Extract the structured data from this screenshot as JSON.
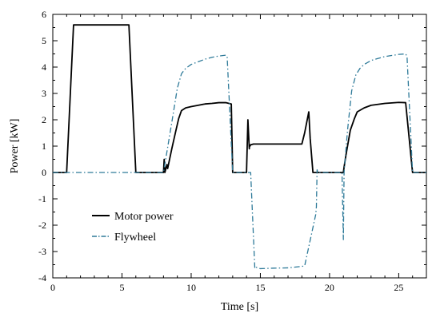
{
  "chart_data": {
    "type": "line",
    "xlabel": "Time [s]",
    "ylabel": "Power [kW]",
    "xlim": [
      0,
      27
    ],
    "ylim": [
      -4,
      6
    ],
    "xticks": [
      0,
      5,
      10,
      15,
      20,
      25
    ],
    "yticks": [
      -4,
      -3,
      -2,
      -1,
      0,
      1,
      2,
      3,
      4,
      5,
      6
    ],
    "grid": false,
    "legend_position": "lower-left",
    "series": [
      {
        "name": "Motor power",
        "color": "#000000",
        "style": "solid",
        "x": [
          0,
          1.0,
          1.5,
          5.5,
          6.0,
          8.0,
          8.05,
          8.1,
          8.25,
          8.3,
          8.6,
          8.9,
          9.1,
          9.3,
          9.6,
          10.0,
          10.5,
          11.0,
          11.5,
          12.0,
          12.5,
          12.9,
          13.0,
          14.0,
          14.1,
          14.2,
          14.22,
          14.25,
          14.3,
          14.5,
          15,
          16,
          17,
          18,
          18.2,
          18.5,
          18.6,
          18.8,
          19.0,
          21.0,
          21.05,
          21.2,
          21.5,
          21.8,
          22.0,
          22.5,
          23,
          24,
          25,
          25.5,
          26.0,
          27
        ],
        "values": [
          0,
          0,
          5.6,
          5.6,
          0,
          0,
          0.5,
          0,
          0.3,
          0.15,
          0.9,
          1.6,
          2.05,
          2.35,
          2.45,
          2.5,
          2.55,
          2.6,
          2.62,
          2.65,
          2.65,
          2.6,
          0,
          0,
          2.0,
          0.9,
          1.05,
          1.0,
          1.05,
          1.08,
          1.08,
          1.08,
          1.08,
          1.08,
          1.5,
          2.3,
          1.3,
          0,
          0,
          0,
          0.2,
          0.7,
          1.6,
          2.05,
          2.3,
          2.45,
          2.55,
          2.62,
          2.66,
          2.65,
          0,
          0
        ]
      },
      {
        "name": "Flywheel",
        "color": "#2e7a99",
        "style": "dashdot",
        "x": [
          0,
          8.0,
          8.6,
          9.0,
          9.3,
          9.6,
          10.0,
          10.5,
          11.0,
          11.5,
          12.0,
          12.5,
          12.6,
          13.0,
          14.3,
          14.6,
          14.7,
          15,
          16,
          17,
          18.2,
          19.0,
          19.05,
          19.1,
          19.15,
          20.9,
          21.0,
          21.05,
          21.3,
          21.6,
          21.9,
          22.2,
          22.5,
          23,
          24,
          25,
          25.5,
          25.6,
          26.0,
          27
        ],
        "values": [
          0,
          0,
          1.9,
          3.2,
          3.75,
          3.95,
          4.1,
          4.2,
          4.3,
          4.37,
          4.42,
          4.45,
          4.4,
          0,
          0,
          -3.65,
          -3.6,
          -3.65,
          -3.63,
          -3.62,
          -3.55,
          -1.6,
          -1.3,
          0.1,
          0,
          0,
          -2.55,
          0,
          1.6,
          3.1,
          3.7,
          3.95,
          4.1,
          4.25,
          4.4,
          4.48,
          4.5,
          4.4,
          0,
          0
        ]
      }
    ]
  }
}
